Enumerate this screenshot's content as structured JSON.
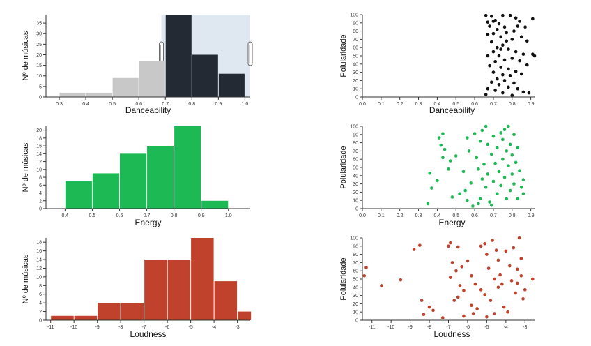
{
  "colors": {
    "danceability_selected": "#232a33",
    "danceability_unselected": "#c8c8c8",
    "brush_fill": "#dfe7f1",
    "energy": "#1db954",
    "loudness": "#c0412c",
    "scatter_dance": "#111111"
  },
  "chart_data": [
    {
      "type": "bar",
      "id": "hist-danceability",
      "xlabel": "Danceability",
      "ylabel": "Nº de músicas",
      "xlim": [
        0.25,
        1.02
      ],
      "ylim": [
        0,
        39
      ],
      "x_ticks": [
        "0.3",
        "0.4",
        "0.5",
        "0.6",
        "0.7",
        "0.8",
        "0.9",
        "1.0"
      ],
      "y_ticks": [
        "0",
        "5",
        "10",
        "15",
        "20",
        "25",
        "30",
        "35"
      ],
      "bins": [
        [
          0.3,
          0.4
        ],
        [
          0.4,
          0.5
        ],
        [
          0.5,
          0.6
        ],
        [
          0.6,
          0.7
        ],
        [
          0.7,
          0.8
        ],
        [
          0.8,
          0.9
        ],
        [
          0.9,
          1.0
        ]
      ],
      "values": [
        2,
        2,
        9,
        17,
        39,
        20,
        11
      ],
      "brush": [
        0.685,
        1.02
      ]
    },
    {
      "type": "scatter",
      "id": "scatter-danceability",
      "xlabel": "Danceability",
      "ylabel": "Polularidade",
      "xlim": [
        0,
        0.92
      ],
      "ylim": [
        0,
        100
      ],
      "x_ticks": [
        "0.0",
        "0.1",
        "0.2",
        "0.3",
        "0.4",
        "0.5",
        "0.6",
        "0.7",
        "0.8",
        "0.9"
      ],
      "y_ticks": [
        "0",
        "10",
        "20",
        "30",
        "40",
        "50",
        "60",
        "70",
        "80",
        "90",
        "100"
      ],
      "points": [
        [
          0.66,
          99
        ],
        [
          0.69,
          98
        ],
        [
          0.75,
          99
        ],
        [
          0.79,
          99
        ],
        [
          0.82,
          96
        ],
        [
          0.84,
          92
        ],
        [
          0.91,
          95
        ],
        [
          0.67,
          91
        ],
        [
          0.71,
          93
        ],
        [
          0.73,
          89
        ],
        [
          0.76,
          85
        ],
        [
          0.68,
          86
        ],
        [
          0.72,
          82
        ],
        [
          0.7,
          77
        ],
        [
          0.77,
          78
        ],
        [
          0.83,
          86
        ],
        [
          0.81,
          80
        ],
        [
          0.67,
          76
        ],
        [
          0.74,
          73
        ],
        [
          0.8,
          70
        ],
        [
          0.85,
          73
        ],
        [
          0.88,
          68
        ],
        [
          0.69,
          67
        ],
        [
          0.75,
          63
        ],
        [
          0.72,
          60
        ],
        [
          0.78,
          58
        ],
        [
          0.82,
          55
        ],
        [
          0.86,
          52
        ],
        [
          0.92,
          50
        ],
        [
          0.91,
          52
        ],
        [
          0.7,
          55
        ],
        [
          0.73,
          50
        ],
        [
          0.67,
          50
        ],
        [
          0.76,
          45
        ],
        [
          0.8,
          47
        ],
        [
          0.84,
          44
        ],
        [
          0.71,
          43
        ],
        [
          0.88,
          39
        ],
        [
          0.68,
          38
        ],
        [
          0.74,
          36
        ],
        [
          0.78,
          34
        ],
        [
          0.82,
          31
        ],
        [
          0.7,
          30
        ],
        [
          0.75,
          27
        ],
        [
          0.79,
          26
        ],
        [
          0.85,
          28
        ],
        [
          0.72,
          22
        ],
        [
          0.76,
          20
        ],
        [
          0.69,
          18
        ],
        [
          0.81,
          17
        ],
        [
          0.73,
          15
        ],
        [
          0.78,
          12
        ],
        [
          0.83,
          10
        ],
        [
          0.67,
          10
        ],
        [
          0.71,
          8
        ],
        [
          0.86,
          6
        ],
        [
          0.75,
          5
        ],
        [
          0.66,
          3
        ],
        [
          0.89,
          5
        ],
        [
          0.8,
          2
        ],
        [
          0.7,
          92
        ],
        [
          0.77,
          68
        ],
        [
          0.74,
          58
        ],
        [
          0.87,
          85
        ]
      ]
    },
    {
      "type": "bar",
      "id": "hist-energy",
      "xlabel": "Energy",
      "ylabel": "Nº de músicas",
      "xlim": [
        0.33,
        1.08
      ],
      "ylim": [
        0,
        21
      ],
      "x_ticks": [
        "0.4",
        "0.5",
        "0.6",
        "0.7",
        "0.8",
        "0.9",
        "1.0"
      ],
      "y_ticks": [
        "0",
        "2",
        "4",
        "6",
        "8",
        "10",
        "12",
        "14",
        "16",
        "18",
        "20"
      ],
      "bins": [
        [
          0.4,
          0.5
        ],
        [
          0.5,
          0.6
        ],
        [
          0.6,
          0.7
        ],
        [
          0.7,
          0.8
        ],
        [
          0.8,
          0.9
        ],
        [
          0.9,
          1.0
        ]
      ],
      "values": [
        7,
        9,
        14,
        16,
        21,
        2
      ]
    },
    {
      "type": "scatter",
      "id": "scatter-energy",
      "xlabel": "Energy",
      "ylabel": "Polularidade",
      "xlim": [
        0,
        0.92
      ],
      "ylim": [
        0,
        100
      ],
      "x_ticks": [
        "0.0",
        "0.1",
        "0.2",
        "0.3",
        "0.4",
        "0.5",
        "0.6",
        "0.7",
        "0.8",
        "0.9"
      ],
      "y_ticks": [
        "0",
        "10",
        "20",
        "30",
        "40",
        "50",
        "60",
        "70",
        "80",
        "90",
        "100"
      ],
      "points": [
        [
          0.35,
          6
        ],
        [
          0.36,
          43
        ],
        [
          0.37,
          25
        ],
        [
          0.4,
          34
        ],
        [
          0.41,
          86
        ],
        [
          0.43,
          91
        ],
        [
          0.43,
          62
        ],
        [
          0.42,
          77
        ],
        [
          0.44,
          72
        ],
        [
          0.46,
          48
        ],
        [
          0.47,
          58
        ],
        [
          0.48,
          14
        ],
        [
          0.5,
          64
        ],
        [
          0.52,
          18
        ],
        [
          0.54,
          45
        ],
        [
          0.55,
          22
        ],
        [
          0.56,
          86
        ],
        [
          0.57,
          70
        ],
        [
          0.58,
          31
        ],
        [
          0.59,
          3
        ],
        [
          0.6,
          91
        ],
        [
          0.61,
          62
        ],
        [
          0.62,
          48
        ],
        [
          0.63,
          12
        ],
        [
          0.63,
          82
        ],
        [
          0.64,
          95
        ],
        [
          0.64,
          36
        ],
        [
          0.65,
          54
        ],
        [
          0.66,
          100
        ],
        [
          0.66,
          26
        ],
        [
          0.67,
          78
        ],
        [
          0.67,
          42
        ],
        [
          0.68,
          8
        ],
        [
          0.69,
          66
        ],
        [
          0.7,
          88
        ],
        [
          0.7,
          33
        ],
        [
          0.71,
          55
        ],
        [
          0.72,
          18
        ],
        [
          0.72,
          74
        ],
        [
          0.73,
          45
        ],
        [
          0.74,
          92
        ],
        [
          0.74,
          28
        ],
        [
          0.75,
          60
        ],
        [
          0.75,
          84
        ],
        [
          0.76,
          96
        ],
        [
          0.76,
          38
        ],
        [
          0.77,
          70
        ],
        [
          0.77,
          12
        ],
        [
          0.78,
          52
        ],
        [
          0.78,
          100
        ],
        [
          0.79,
          78
        ],
        [
          0.79,
          22
        ],
        [
          0.8,
          65
        ],
        [
          0.8,
          42
        ],
        [
          0.81,
          90
        ],
        [
          0.81,
          30
        ],
        [
          0.82,
          56
        ],
        [
          0.83,
          12
        ],
        [
          0.83,
          74
        ],
        [
          0.84,
          46
        ],
        [
          0.85,
          26
        ],
        [
          0.86,
          35
        ],
        [
          0.86,
          18
        ],
        [
          0.62,
          6
        ],
        [
          0.69,
          4
        ],
        [
          0.56,
          10
        ]
      ]
    },
    {
      "type": "bar",
      "id": "hist-loudness",
      "xlabel": "Loudness",
      "ylabel": "Nº de músicas",
      "xlim": [
        -11.2,
        -2.45
      ],
      "ylim": [
        0,
        19
      ],
      "x_ticks": [
        "-11",
        "-10",
        "-9",
        "-8",
        "-7",
        "-6",
        "-5",
        "-4",
        "-3"
      ],
      "y_ticks": [
        "0",
        "2",
        "4",
        "6",
        "8",
        "10",
        "12",
        "14",
        "16",
        "18"
      ],
      "bins": [
        [
          -11,
          -10
        ],
        [
          -10,
          -9
        ],
        [
          -9,
          -8
        ],
        [
          -8,
          -7
        ],
        [
          -7,
          -6
        ],
        [
          -6,
          -5
        ],
        [
          -5,
          -4
        ],
        [
          -4,
          -3
        ],
        [
          -3,
          -2.4
        ]
      ],
      "values": [
        1,
        1,
        4,
        4,
        14,
        14,
        19,
        9,
        2
      ]
    },
    {
      "type": "scatter",
      "id": "scatter-loudness",
      "xlabel": "Loudness",
      "ylabel": "Polularidade",
      "xlim": [
        -11.5,
        -2.5
      ],
      "ylim": [
        0,
        100
      ],
      "x_ticks": [
        "-11",
        "-10",
        "-9",
        "-8",
        "-7",
        "-6",
        "-5",
        "-4",
        "-3"
      ],
      "y_ticks": [
        "0",
        "10",
        "20",
        "30",
        "40",
        "50",
        "60",
        "70",
        "80",
        "90",
        "100"
      ],
      "points": [
        [
          -11.3,
          64
        ],
        [
          -11.4,
          54
        ],
        [
          -10.5,
          42
        ],
        [
          -9.5,
          49
        ],
        [
          -8.8,
          86
        ],
        [
          -8.5,
          91
        ],
        [
          -8.4,
          24
        ],
        [
          -8.0,
          16
        ],
        [
          -8.3,
          7
        ],
        [
          -7.8,
          12
        ],
        [
          -7.3,
          3
        ],
        [
          -6.9,
          94
        ],
        [
          -6.5,
          89
        ],
        [
          -6.8,
          70
        ],
        [
          -6.6,
          60
        ],
        [
          -6.9,
          52
        ],
        [
          -6.4,
          42
        ],
        [
          -6.2,
          36
        ],
        [
          -6.5,
          28
        ],
        [
          -6.7,
          24
        ],
        [
          -6.3,
          65
        ],
        [
          -6.0,
          72
        ],
        [
          -5.8,
          54
        ],
        [
          -5.6,
          44
        ],
        [
          -5.5,
          14
        ],
        [
          -5.7,
          8
        ],
        [
          -5.3,
          90
        ],
        [
          -5.1,
          93
        ],
        [
          -5.0,
          80
        ],
        [
          -4.9,
          63
        ],
        [
          -5.3,
          37
        ],
        [
          -5.1,
          31
        ],
        [
          -4.8,
          24
        ],
        [
          -4.6,
          8
        ],
        [
          -5.0,
          4
        ],
        [
          -4.7,
          97
        ],
        [
          -4.5,
          85
        ],
        [
          -4.4,
          73
        ],
        [
          -4.3,
          55
        ],
        [
          -4.2,
          44
        ],
        [
          -4.4,
          40
        ],
        [
          -4.1,
          16
        ],
        [
          -3.9,
          10
        ],
        [
          -4.0,
          84
        ],
        [
          -3.8,
          66
        ],
        [
          -3.7,
          48
        ],
        [
          -3.5,
          33
        ],
        [
          -3.4,
          62
        ],
        [
          -3.3,
          100
        ],
        [
          -3.2,
          75
        ],
        [
          -3.2,
          54
        ],
        [
          -3.4,
          45
        ],
        [
          -3.1,
          26
        ],
        [
          -3.0,
          37
        ],
        [
          -2.6,
          50
        ],
        [
          -4.6,
          50
        ],
        [
          -5.8,
          18
        ],
        [
          -6.2,
          5
        ],
        [
          -7.0,
          90
        ],
        [
          -3.6,
          88
        ]
      ]
    }
  ]
}
